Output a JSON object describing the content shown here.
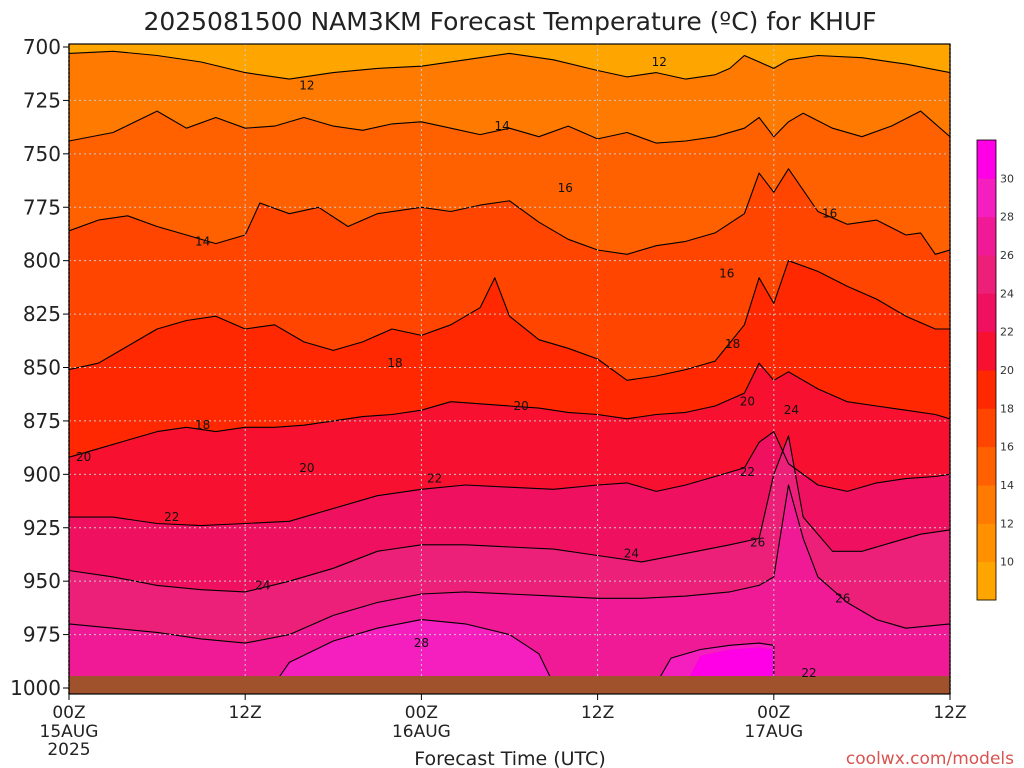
{
  "chart_data": {
    "type": "heatmap",
    "title": "2025081500 NAM3KM Forecast Temperature (ºC) for KHUF",
    "xlabel": "Forecast Time (UTC)",
    "ylabel": "",
    "x_ticks": [
      {
        "hour": 0,
        "label": "00Z",
        "sub": "15AUG",
        "sub2": "2025"
      },
      {
        "hour": 12,
        "label": "12Z",
        "sub": "",
        "sub2": ""
      },
      {
        "hour": 24,
        "label": "00Z",
        "sub": "16AUG",
        "sub2": ""
      },
      {
        "hour": 36,
        "label": "12Z",
        "sub": "",
        "sub2": ""
      },
      {
        "hour": 48,
        "label": "00Z",
        "sub": "17AUG",
        "sub2": ""
      },
      {
        "hour": 60,
        "label": "12Z",
        "sub": "",
        "sub2": ""
      }
    ],
    "y_ticks": [
      "700",
      "725",
      "750",
      "775",
      "800",
      "825",
      "850",
      "875",
      "900",
      "925",
      "950",
      "975",
      "1000"
    ],
    "xlim": [
      0,
      60
    ],
    "ylim_hpa": [
      700,
      1000
    ],
    "levels": [
      10,
      12,
      14,
      16,
      18,
      20,
      22,
      24,
      26,
      28,
      30
    ],
    "colorbar_labels": [
      "10",
      "12",
      "14",
      "16",
      "18",
      "20",
      "22",
      "24",
      "26",
      "28",
      "30"
    ],
    "colors": {
      "lt10": "#FFA500",
      "c10": "#FF9000",
      "c12": "#FF7A00",
      "c14": "#FF6000",
      "c16": "#FF4500",
      "c18": "#FF2800",
      "c20": "#F7102F",
      "c22": "#F01060",
      "c24": "#EC2078",
      "c26": "#F01A96",
      "c28": "#F51EBE",
      "c30": "#FF00E6",
      "ground": "#A0522D"
    },
    "isotherms": [
      {
        "t": 12,
        "pts": [
          [
            0,
            703
          ],
          [
            3,
            702
          ],
          [
            6,
            704
          ],
          [
            9,
            707
          ],
          [
            12,
            712
          ],
          [
            15,
            715
          ],
          [
            18,
            712
          ],
          [
            21,
            710
          ],
          [
            24,
            709
          ],
          [
            27,
            706
          ],
          [
            30,
            703
          ],
          [
            33,
            706
          ],
          [
            36,
            711
          ],
          [
            38,
            714
          ],
          [
            40,
            712
          ],
          [
            42,
            715
          ],
          [
            44,
            713
          ],
          [
            45,
            710
          ],
          [
            46,
            704
          ],
          [
            48,
            710
          ],
          [
            49,
            706
          ],
          [
            51,
            704
          ],
          [
            54,
            705
          ],
          [
            57,
            708
          ],
          [
            60,
            712
          ]
        ]
      },
      {
        "t": 14,
        "pts": [
          [
            0,
            744
          ],
          [
            3,
            740
          ],
          [
            6,
            730
          ],
          [
            8,
            738
          ],
          [
            10,
            733
          ],
          [
            12,
            738
          ],
          [
            14,
            737
          ],
          [
            16,
            733
          ],
          [
            18,
            737
          ],
          [
            20,
            739
          ],
          [
            22,
            736
          ],
          [
            24,
            735
          ],
          [
            26,
            738
          ],
          [
            28,
            741
          ],
          [
            30,
            738
          ],
          [
            32,
            742
          ],
          [
            34,
            737
          ],
          [
            36,
            743
          ],
          [
            38,
            740
          ],
          [
            40,
            745
          ],
          [
            42,
            744
          ],
          [
            44,
            742
          ],
          [
            46,
            738
          ],
          [
            47,
            733
          ],
          [
            48,
            742
          ],
          [
            49,
            735
          ],
          [
            50,
            731
          ],
          [
            52,
            738
          ],
          [
            54,
            742
          ],
          [
            56,
            737
          ],
          [
            58,
            730
          ],
          [
            60,
            742
          ]
        ]
      },
      {
        "t": 16,
        "pts": [
          [
            0,
            786
          ],
          [
            2,
            781
          ],
          [
            4,
            779
          ],
          [
            6,
            784
          ],
          [
            8,
            788
          ],
          [
            10,
            792
          ],
          [
            12,
            788
          ],
          [
            13,
            773
          ],
          [
            15,
            778
          ],
          [
            17,
            775
          ],
          [
            19,
            784
          ],
          [
            21,
            778
          ],
          [
            24,
            775
          ],
          [
            26,
            777
          ],
          [
            28,
            774
          ],
          [
            30,
            772
          ],
          [
            32,
            782
          ],
          [
            34,
            790
          ],
          [
            36,
            795
          ],
          [
            38,
            797
          ],
          [
            40,
            793
          ],
          [
            42,
            791
          ],
          [
            44,
            787
          ],
          [
            46,
            778
          ],
          [
            47,
            759
          ],
          [
            48,
            768
          ],
          [
            49,
            757
          ],
          [
            51,
            777
          ],
          [
            53,
            783
          ],
          [
            55,
            781
          ],
          [
            57,
            788
          ],
          [
            58,
            787
          ],
          [
            59,
            797
          ],
          [
            60,
            795
          ]
        ]
      },
      {
        "t": 18,
        "pts": [
          [
            0,
            851
          ],
          [
            2,
            848
          ],
          [
            4,
            840
          ],
          [
            6,
            832
          ],
          [
            8,
            828
          ],
          [
            10,
            826
          ],
          [
            12,
            832
          ],
          [
            14,
            830
          ],
          [
            16,
            838
          ],
          [
            18,
            842
          ],
          [
            20,
            838
          ],
          [
            22,
            832
          ],
          [
            24,
            835
          ],
          [
            26,
            830
          ],
          [
            28,
            822
          ],
          [
            29,
            808
          ],
          [
            30,
            826
          ],
          [
            32,
            837
          ],
          [
            34,
            841
          ],
          [
            36,
            846
          ],
          [
            38,
            856
          ],
          [
            40,
            854
          ],
          [
            42,
            851
          ],
          [
            44,
            847
          ],
          [
            46,
            830
          ],
          [
            47,
            808
          ],
          [
            48,
            820
          ],
          [
            49,
            800
          ],
          [
            51,
            805
          ],
          [
            53,
            812
          ],
          [
            55,
            818
          ],
          [
            57,
            826
          ],
          [
            59,
            832
          ],
          [
            60,
            832
          ]
        ]
      },
      {
        "t": 20,
        "pts": [
          [
            0,
            892
          ],
          [
            2,
            888
          ],
          [
            4,
            884
          ],
          [
            6,
            880
          ],
          [
            8,
            878
          ],
          [
            10,
            880
          ],
          [
            12,
            878
          ],
          [
            14,
            878
          ],
          [
            16,
            877
          ],
          [
            18,
            875
          ],
          [
            20,
            873
          ],
          [
            22,
            872
          ],
          [
            24,
            870
          ],
          [
            26,
            866
          ],
          [
            28,
            867
          ],
          [
            30,
            868
          ],
          [
            32,
            869
          ],
          [
            34,
            871
          ],
          [
            36,
            872
          ],
          [
            38,
            874
          ],
          [
            40,
            872
          ],
          [
            42,
            871
          ],
          [
            44,
            868
          ],
          [
            46,
            862
          ],
          [
            47,
            848
          ],
          [
            48,
            856
          ],
          [
            49,
            852
          ],
          [
            51,
            860
          ],
          [
            53,
            866
          ],
          [
            55,
            868
          ],
          [
            57,
            870
          ],
          [
            59,
            872
          ],
          [
            60,
            874
          ]
        ]
      },
      {
        "t": 22,
        "pts": [
          [
            0,
            920
          ],
          [
            3,
            920
          ],
          [
            6,
            923
          ],
          [
            9,
            924
          ],
          [
            12,
            923
          ],
          [
            15,
            922
          ],
          [
            18,
            916
          ],
          [
            21,
            910
          ],
          [
            24,
            907
          ],
          [
            27,
            905
          ],
          [
            30,
            906
          ],
          [
            33,
            907
          ],
          [
            36,
            905
          ],
          [
            38,
            904
          ],
          [
            40,
            908
          ],
          [
            42,
            905
          ],
          [
            44,
            901
          ],
          [
            46,
            897
          ],
          [
            47,
            885
          ],
          [
            48,
            880
          ],
          [
            49,
            895
          ],
          [
            51,
            905
          ],
          [
            53,
            908
          ],
          [
            55,
            904
          ],
          [
            57,
            902
          ],
          [
            59,
            901
          ],
          [
            60,
            900
          ]
        ]
      },
      {
        "t": 24,
        "pts": [
          [
            0,
            945
          ],
          [
            3,
            948
          ],
          [
            6,
            952
          ],
          [
            9,
            954
          ],
          [
            12,
            955
          ],
          [
            15,
            950
          ],
          [
            18,
            944
          ],
          [
            21,
            936
          ],
          [
            24,
            933
          ],
          [
            27,
            933
          ],
          [
            30,
            934
          ],
          [
            33,
            935
          ],
          [
            36,
            938
          ],
          [
            39,
            941
          ],
          [
            42,
            937
          ],
          [
            45,
            933
          ],
          [
            47,
            930
          ],
          [
            48,
            900
          ],
          [
            49,
            882
          ],
          [
            50,
            920
          ],
          [
            52,
            936
          ],
          [
            54,
            936
          ],
          [
            56,
            932
          ],
          [
            58,
            928
          ],
          [
            60,
            926
          ]
        ]
      },
      {
        "t": 26,
        "pts": [
          [
            0,
            970
          ],
          [
            3,
            972
          ],
          [
            6,
            974
          ],
          [
            9,
            977
          ],
          [
            12,
            979
          ],
          [
            15,
            975
          ],
          [
            18,
            966
          ],
          [
            21,
            960
          ],
          [
            24,
            956
          ],
          [
            27,
            955
          ],
          [
            30,
            956
          ],
          [
            33,
            957
          ],
          [
            36,
            958
          ],
          [
            39,
            958
          ],
          [
            42,
            957
          ],
          [
            45,
            955
          ],
          [
            47,
            952
          ],
          [
            48,
            948
          ],
          [
            49,
            905
          ],
          [
            50,
            930
          ],
          [
            51,
            948
          ],
          [
            53,
            960
          ],
          [
            55,
            968
          ],
          [
            57,
            972
          ],
          [
            60,
            970
          ]
        ]
      },
      {
        "t": 28,
        "pts": [
          [
            14,
            998
          ],
          [
            15,
            988
          ],
          [
            18,
            978
          ],
          [
            21,
            972
          ],
          [
            24,
            968
          ],
          [
            27,
            970
          ],
          [
            30,
            975
          ],
          [
            32,
            984
          ],
          [
            33,
            998
          ]
        ]
      },
      {
        "t": 28,
        "pts": [
          [
            40,
            998
          ],
          [
            41,
            986
          ],
          [
            43,
            982
          ],
          [
            45,
            980
          ],
          [
            47,
            979
          ],
          [
            48,
            980
          ],
          [
            48,
            998
          ]
        ]
      }
    ],
    "contour_labels": [
      {
        "t": "12",
        "h": 16.2,
        "p": 718
      },
      {
        "t": "12",
        "h": 40.2,
        "p": 707
      },
      {
        "t": "14",
        "h": 9.1,
        "p": 791
      },
      {
        "t": "14",
        "h": 29.5,
        "p": 737
      },
      {
        "t": "16",
        "h": 33.8,
        "p": 766
      },
      {
        "t": "16",
        "h": 44.8,
        "p": 806
      },
      {
        "t": "16",
        "h": 51.8,
        "p": 778
      },
      {
        "t": "18",
        "h": 9.1,
        "p": 877
      },
      {
        "t": "18",
        "h": 22.2,
        "p": 848
      },
      {
        "t": "18",
        "h": 45.2,
        "p": 839
      },
      {
        "t": "20",
        "h": 1,
        "p": 892
      },
      {
        "t": "20",
        "h": 16.2,
        "p": 897
      },
      {
        "t": "20",
        "h": 30.8,
        "p": 868
      },
      {
        "t": "20",
        "h": 46.2,
        "p": 866
      },
      {
        "t": "22",
        "h": 7.0,
        "p": 920
      },
      {
        "t": "22",
        "h": 24.9,
        "p": 902
      },
      {
        "t": "22",
        "h": 46.2,
        "p": 899
      },
      {
        "t": "24",
        "h": 13.2,
        "p": 952
      },
      {
        "t": "24",
        "h": 38.3,
        "p": 937
      },
      {
        "t": "24",
        "h": 49.2,
        "p": 870
      },
      {
        "t": "26",
        "h": 46.9,
        "p": 932
      },
      {
        "t": "26",
        "h": 52.7,
        "p": 958
      },
      {
        "t": "28",
        "h": 24.0,
        "p": 979
      },
      {
        "t": "22",
        "h": 50.4,
        "p": 993
      }
    ]
  },
  "footer": {
    "credit": "coolwx.com/models"
  }
}
